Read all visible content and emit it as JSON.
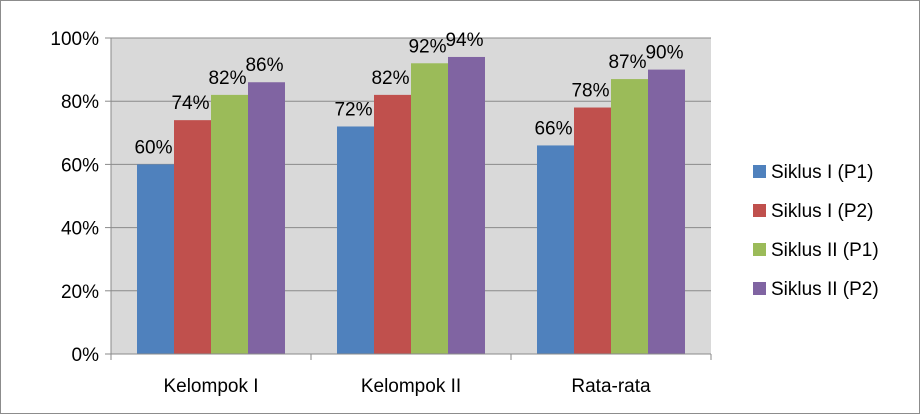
{
  "chart_data": {
    "type": "bar",
    "categories": [
      "Kelompok I",
      "Kelompok II",
      "Rata-rata"
    ],
    "series": [
      {
        "name": "Siklus I (P1)",
        "values": [
          60,
          72,
          66
        ],
        "labels": [
          "60%",
          "72%",
          "66%"
        ],
        "color": "#4f81bd"
      },
      {
        "name": "Siklus I (P2)",
        "values": [
          74,
          82,
          78
        ],
        "labels": [
          "74%",
          "82%",
          "78%"
        ],
        "color": "#c0504d"
      },
      {
        "name": "Siklus II (P1)",
        "values": [
          82,
          92,
          87
        ],
        "labels": [
          "82%",
          "92%",
          "87%"
        ],
        "color": "#9bbb59"
      },
      {
        "name": "Siklus II (P2)",
        "values": [
          86,
          94,
          90
        ],
        "labels": [
          "86%",
          "94%",
          "90%"
        ],
        "color": "#8064a2"
      }
    ],
    "ylim": [
      0,
      100
    ],
    "yticks": [
      {
        "value": 0,
        "label": "0%"
      },
      {
        "value": 20,
        "label": "20%"
      },
      {
        "value": 40,
        "label": "40%"
      },
      {
        "value": 60,
        "label": "60%"
      },
      {
        "value": 80,
        "label": "80%"
      },
      {
        "value": 100,
        "label": "100%"
      }
    ],
    "grid": true,
    "plot_background": "#d9d9d9",
    "legend_position": "right"
  }
}
